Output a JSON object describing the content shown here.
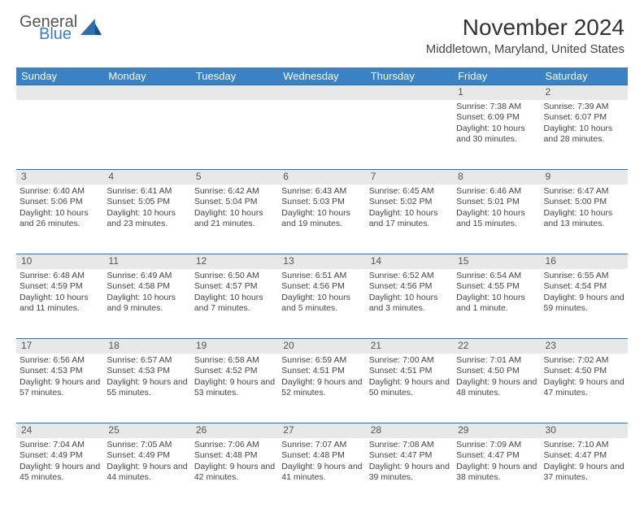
{
  "logo": {
    "general": "General",
    "blue": "Blue"
  },
  "title": "November 2024",
  "location": "Middletown, Maryland, United States",
  "headers": [
    "Sunday",
    "Monday",
    "Tuesday",
    "Wednesday",
    "Thursday",
    "Friday",
    "Saturday"
  ],
  "style": {
    "header_bg": "#3b82c4",
    "header_text": "#ffffff",
    "daynum_bg": "#e8e8e8",
    "daynum_border_top": "#3b6a99",
    "body_bg": "#ffffff",
    "text_color": "#444444",
    "title_fontsize": 28,
    "location_fontsize": 15,
    "header_fontsize": 13,
    "cell_fontsize": 10.5,
    "logo_accent": "#2f6fb0"
  },
  "weeks": [
    [
      null,
      null,
      null,
      null,
      null,
      {
        "n": "1",
        "sr": "7:38 AM",
        "ss": "6:09 PM",
        "dl": "10 hours and 30 minutes."
      },
      {
        "n": "2",
        "sr": "7:39 AM",
        "ss": "6:07 PM",
        "dl": "10 hours and 28 minutes."
      }
    ],
    [
      {
        "n": "3",
        "sr": "6:40 AM",
        "ss": "5:06 PM",
        "dl": "10 hours and 26 minutes."
      },
      {
        "n": "4",
        "sr": "6:41 AM",
        "ss": "5:05 PM",
        "dl": "10 hours and 23 minutes."
      },
      {
        "n": "5",
        "sr": "6:42 AM",
        "ss": "5:04 PM",
        "dl": "10 hours and 21 minutes."
      },
      {
        "n": "6",
        "sr": "6:43 AM",
        "ss": "5:03 PM",
        "dl": "10 hours and 19 minutes."
      },
      {
        "n": "7",
        "sr": "6:45 AM",
        "ss": "5:02 PM",
        "dl": "10 hours and 17 minutes."
      },
      {
        "n": "8",
        "sr": "6:46 AM",
        "ss": "5:01 PM",
        "dl": "10 hours and 15 minutes."
      },
      {
        "n": "9",
        "sr": "6:47 AM",
        "ss": "5:00 PM",
        "dl": "10 hours and 13 minutes."
      }
    ],
    [
      {
        "n": "10",
        "sr": "6:48 AM",
        "ss": "4:59 PM",
        "dl": "10 hours and 11 minutes."
      },
      {
        "n": "11",
        "sr": "6:49 AM",
        "ss": "4:58 PM",
        "dl": "10 hours and 9 minutes."
      },
      {
        "n": "12",
        "sr": "6:50 AM",
        "ss": "4:57 PM",
        "dl": "10 hours and 7 minutes."
      },
      {
        "n": "13",
        "sr": "6:51 AM",
        "ss": "4:56 PM",
        "dl": "10 hours and 5 minutes."
      },
      {
        "n": "14",
        "sr": "6:52 AM",
        "ss": "4:56 PM",
        "dl": "10 hours and 3 minutes."
      },
      {
        "n": "15",
        "sr": "6:54 AM",
        "ss": "4:55 PM",
        "dl": "10 hours and 1 minute."
      },
      {
        "n": "16",
        "sr": "6:55 AM",
        "ss": "4:54 PM",
        "dl": "9 hours and 59 minutes."
      }
    ],
    [
      {
        "n": "17",
        "sr": "6:56 AM",
        "ss": "4:53 PM",
        "dl": "9 hours and 57 minutes."
      },
      {
        "n": "18",
        "sr": "6:57 AM",
        "ss": "4:53 PM",
        "dl": "9 hours and 55 minutes."
      },
      {
        "n": "19",
        "sr": "6:58 AM",
        "ss": "4:52 PM",
        "dl": "9 hours and 53 minutes."
      },
      {
        "n": "20",
        "sr": "6:59 AM",
        "ss": "4:51 PM",
        "dl": "9 hours and 52 minutes."
      },
      {
        "n": "21",
        "sr": "7:00 AM",
        "ss": "4:51 PM",
        "dl": "9 hours and 50 minutes."
      },
      {
        "n": "22",
        "sr": "7:01 AM",
        "ss": "4:50 PM",
        "dl": "9 hours and 48 minutes."
      },
      {
        "n": "23",
        "sr": "7:02 AM",
        "ss": "4:50 PM",
        "dl": "9 hours and 47 minutes."
      }
    ],
    [
      {
        "n": "24",
        "sr": "7:04 AM",
        "ss": "4:49 PM",
        "dl": "9 hours and 45 minutes."
      },
      {
        "n": "25",
        "sr": "7:05 AM",
        "ss": "4:49 PM",
        "dl": "9 hours and 44 minutes."
      },
      {
        "n": "26",
        "sr": "7:06 AM",
        "ss": "4:48 PM",
        "dl": "9 hours and 42 minutes."
      },
      {
        "n": "27",
        "sr": "7:07 AM",
        "ss": "4:48 PM",
        "dl": "9 hours and 41 minutes."
      },
      {
        "n": "28",
        "sr": "7:08 AM",
        "ss": "4:47 PM",
        "dl": "9 hours and 39 minutes."
      },
      {
        "n": "29",
        "sr": "7:09 AM",
        "ss": "4:47 PM",
        "dl": "9 hours and 38 minutes."
      },
      {
        "n": "30",
        "sr": "7:10 AM",
        "ss": "4:47 PM",
        "dl": "9 hours and 37 minutes."
      }
    ]
  ],
  "labels": {
    "sunrise": "Sunrise:",
    "sunset": "Sunset:",
    "daylight": "Daylight:"
  }
}
